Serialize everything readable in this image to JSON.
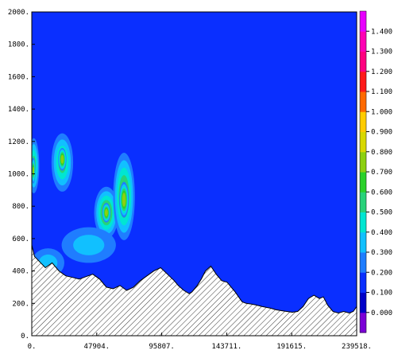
{
  "chart_data": {
    "type": "heatmap",
    "subtype": "filled-contour-cross-section",
    "xlim": [
      0,
      239518
    ],
    "ylim": [
      0,
      2000
    ],
    "x_tick_labels": [
      "0.",
      "47904.",
      "95807.",
      "143711.",
      "191615.",
      "239518."
    ],
    "x_ticks": [
      0,
      47904,
      95807,
      143711,
      191615,
      239518
    ],
    "y_tick_labels": [
      "0.",
      "200.",
      "400.",
      "600.",
      "800.",
      "1000.",
      "1200.",
      "1400.",
      "1600.",
      "1800.",
      "2000."
    ],
    "y_ticks": [
      0,
      200,
      400,
      600,
      800,
      1000,
      1200,
      1400,
      1600,
      1800,
      2000
    ],
    "grid": false,
    "colorbar": {
      "placement": "right",
      "labels": [
        "0.000",
        "0.100",
        "0.200",
        "0.300",
        "0.400",
        "0.500",
        "0.600",
        "0.700",
        "0.800",
        "0.900",
        "1.000",
        "1.100",
        "1.200",
        "1.300",
        "1.400"
      ],
      "colors": [
        "#7b00d6",
        "#0000c8",
        "#0a2fff",
        "#1f7dff",
        "#11c0ff",
        "#00e6d2",
        "#28d27a",
        "#2ad12a",
        "#8cd010",
        "#d8d800",
        "#ffcc00",
        "#ff6a00",
        "#ff1a1a",
        "#ff0080",
        "#ff00b4",
        "#e800ff"
      ]
    },
    "background_level": "0.100",
    "terrain": {
      "fill": "hatched",
      "x": [
        0,
        2000,
        10000,
        15000,
        20000,
        25000,
        30000,
        35000,
        40000,
        45000,
        50000,
        55000,
        60000,
        65000,
        70000,
        75000,
        80000,
        85000,
        90000,
        95000,
        100000,
        105000,
        108000,
        112000,
        116000,
        118000,
        122000,
        125000,
        128000,
        132000,
        136000,
        140000,
        144000,
        147000,
        150000,
        155000,
        158000,
        162000,
        165000,
        170000,
        176000,
        180000,
        184000,
        188000,
        192000,
        196000,
        200000,
        204000,
        208000,
        210000,
        212000,
        215000,
        218000,
        222000,
        226000,
        230000,
        234000,
        237000,
        239518
      ],
      "y": [
        560,
        490,
        420,
        450,
        400,
        370,
        360,
        350,
        365,
        380,
        350,
        300,
        290,
        310,
        280,
        300,
        340,
        370,
        400,
        420,
        380,
        340,
        310,
        280,
        260,
        270,
        310,
        350,
        400,
        430,
        380,
        340,
        330,
        300,
        270,
        210,
        200,
        195,
        190,
        180,
        170,
        160,
        155,
        150,
        145,
        150,
        180,
        230,
        250,
        240,
        230,
        240,
        190,
        150,
        140,
        150,
        140,
        150,
        180
      ]
    },
    "features": [
      {
        "kind": "ellipse",
        "x": 1500,
        "y": 1050,
        "rx": 4000,
        "ry": 170,
        "value": 0.55
      },
      {
        "kind": "ellipse",
        "x": 1200,
        "y": 1020,
        "rx": 1500,
        "ry": 80,
        "value": 0.75
      },
      {
        "kind": "ellipse",
        "x": 22500,
        "y": 1070,
        "rx": 8000,
        "ry": 180,
        "value": 0.55
      },
      {
        "kind": "ellipse",
        "x": 22500,
        "y": 1090,
        "rx": 3000,
        "ry": 70,
        "value": 0.8
      },
      {
        "kind": "ellipse",
        "x": 55000,
        "y": 760,
        "rx": 9000,
        "ry": 160,
        "value": 0.65
      },
      {
        "kind": "ellipse",
        "x": 55000,
        "y": 760,
        "rx": 3000,
        "ry": 60,
        "value": 0.8
      },
      {
        "kind": "ellipse",
        "x": 68000,
        "y": 860,
        "rx": 8000,
        "ry": 270,
        "value": 0.65
      },
      {
        "kind": "ellipse",
        "x": 68000,
        "y": 840,
        "rx": 3500,
        "ry": 110,
        "value": 0.85
      },
      {
        "kind": "ellipse",
        "x": 42000,
        "y": 560,
        "rx": 20000,
        "ry": 110,
        "value": 0.35
      },
      {
        "kind": "ellipse",
        "x": 12000,
        "y": 450,
        "rx": 12000,
        "ry": 90,
        "value": 0.35
      }
    ]
  }
}
